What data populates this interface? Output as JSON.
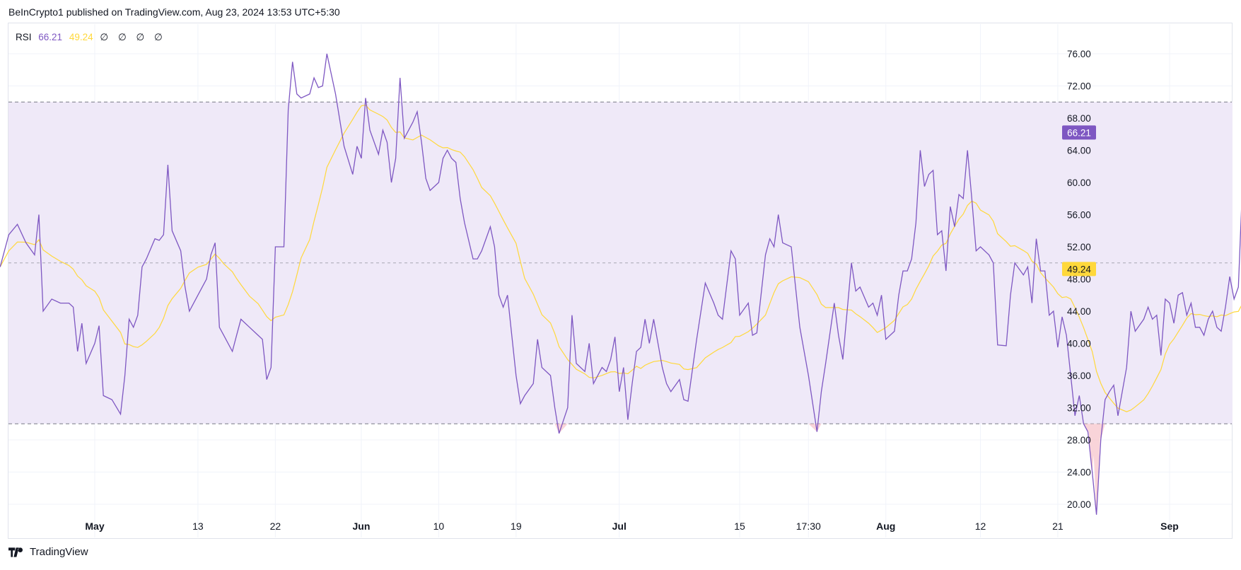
{
  "header": {
    "published": "BeInCrypto1 published on TradingView.com, Aug 23, 2024 13:53 UTC+5:30"
  },
  "legend": {
    "name": "RSI",
    "rsi_value": "66.21",
    "ma_value": "49.24",
    "null_markers": [
      "∅",
      "∅",
      "∅",
      "∅"
    ]
  },
  "footer": {
    "brand": "TradingView"
  },
  "colors": {
    "rsi_line": "#7e57c2",
    "ma_line": "#ffd83b",
    "band_fill": "#efe9f8",
    "oversold_fill": "#f7c9cf"
  },
  "chart_data": {
    "type": "line",
    "title": "",
    "y_range": [
      18.5,
      79
    ],
    "y_ticks": [
      "76.00",
      "72.00",
      "68.00",
      "64.00",
      "60.00",
      "56.00",
      "52.00",
      "48.00",
      "44.00",
      "40.00",
      "36.00",
      "32.00",
      "28.00",
      "24.00",
      "20.00"
    ],
    "y_tick_values": [
      76,
      72,
      68,
      64,
      60,
      56,
      52,
      48,
      44,
      40,
      36,
      32,
      28,
      24,
      20
    ],
    "levels": {
      "upper": 70,
      "middle": 50,
      "lower": 30
    },
    "x_range": [
      "2024-04-20",
      "2024-09-07"
    ],
    "x_ticks": [
      {
        "label": "May",
        "date": "2024-05-01",
        "bold": true
      },
      {
        "label": "13",
        "date": "2024-05-13",
        "bold": false
      },
      {
        "label": "22",
        "date": "2024-05-22",
        "bold": false
      },
      {
        "label": "Jun",
        "date": "2024-06-01",
        "bold": true
      },
      {
        "label": "10",
        "date": "2024-06-10",
        "bold": false
      },
      {
        "label": "19",
        "date": "2024-06-19",
        "bold": false
      },
      {
        "label": "Jul",
        "date": "2024-07-01",
        "bold": true
      },
      {
        "label": "15",
        "date": "2024-07-15",
        "bold": false
      },
      {
        "label": "17:30",
        "date": "2024-07-23",
        "bold": false
      },
      {
        "label": "Aug",
        "date": "2024-08-01",
        "bold": true
      },
      {
        "label": "12",
        "date": "2024-08-12",
        "bold": false
      },
      {
        "label": "21",
        "date": "2024-08-21",
        "bold": false
      },
      {
        "label": "Sep",
        "date": "2024-09-03",
        "bold": true
      }
    ],
    "last_labels": {
      "rsi": "66.21",
      "ma": "49.24"
    },
    "series": [
      {
        "name": "RSI",
        "points": [
          [
            "2024-04-20",
            49.5
          ],
          [
            "2024-04-21",
            53.5
          ],
          [
            "2024-04-22",
            54.8
          ],
          [
            "2024-04-23",
            52.5
          ],
          [
            "2024-04-24",
            51
          ],
          [
            "2024-04-24",
            56
          ],
          [
            "2024-04-25",
            44
          ],
          [
            "2024-04-26",
            45.5
          ],
          [
            "2024-04-27",
            45
          ],
          [
            "2024-04-28",
            45
          ],
          [
            "2024-04-28",
            44.5
          ],
          [
            "2024-04-29",
            39
          ],
          [
            "2024-04-29",
            42.5
          ],
          [
            "2024-04-30",
            37.5
          ],
          [
            "2024-05-01",
            40
          ],
          [
            "2024-05-01",
            42.2
          ],
          [
            "2024-05-02",
            33.5
          ],
          [
            "2024-05-03",
            33
          ],
          [
            "2024-05-04",
            31.2
          ],
          [
            "2024-05-04",
            36
          ],
          [
            "2024-05-05",
            43
          ],
          [
            "2024-05-05",
            42
          ],
          [
            "2024-05-06",
            43.5
          ],
          [
            "2024-05-06",
            49.5
          ],
          [
            "2024-05-07",
            50.5
          ],
          [
            "2024-05-08",
            53
          ],
          [
            "2024-05-08",
            52.8
          ],
          [
            "2024-05-09",
            53.5
          ],
          [
            "2024-05-09",
            62.2
          ],
          [
            "2024-05-10",
            54
          ],
          [
            "2024-05-11",
            51.5
          ],
          [
            "2024-05-11",
            47
          ],
          [
            "2024-05-12",
            44
          ],
          [
            "2024-05-13",
            46
          ],
          [
            "2024-05-14",
            48
          ],
          [
            "2024-05-14",
            51
          ],
          [
            "2024-05-15",
            52.5
          ],
          [
            "2024-05-15",
            42
          ],
          [
            "2024-05-16",
            41
          ],
          [
            "2024-05-17",
            39
          ],
          [
            "2024-05-17",
            41
          ],
          [
            "2024-05-18",
            43
          ],
          [
            "2024-05-19",
            42
          ],
          [
            "2024-05-20",
            41
          ],
          [
            "2024-05-20",
            40.5
          ],
          [
            "2024-05-21",
            35.5
          ],
          [
            "2024-05-21",
            37
          ],
          [
            "2024-05-22",
            52
          ],
          [
            "2024-05-23",
            52
          ],
          [
            "2024-05-23",
            69
          ],
          [
            "2024-05-24",
            75
          ],
          [
            "2024-05-24",
            71
          ],
          [
            "2024-05-25",
            70.5
          ],
          [
            "2024-05-26",
            71
          ],
          [
            "2024-05-26",
            73
          ],
          [
            "2024-05-27",
            71.8
          ],
          [
            "2024-05-27",
            72
          ],
          [
            "2024-05-28",
            76
          ],
          [
            "2024-05-29",
            71
          ],
          [
            "2024-05-30",
            64.5
          ],
          [
            "2024-05-31",
            61
          ],
          [
            "2024-05-31",
            64.5
          ],
          [
            "2024-06-01",
            63
          ],
          [
            "2024-06-01",
            70.5
          ],
          [
            "2024-06-02",
            66.5
          ],
          [
            "2024-06-03",
            63.5
          ],
          [
            "2024-06-03",
            66.5
          ],
          [
            "2024-06-04",
            65
          ],
          [
            "2024-06-04",
            60
          ],
          [
            "2024-06-05",
            63
          ],
          [
            "2024-06-05",
            73
          ],
          [
            "2024-06-06",
            65.5
          ],
          [
            "2024-06-07",
            67.5
          ],
          [
            "2024-06-07",
            68.8
          ],
          [
            "2024-06-08",
            65
          ],
          [
            "2024-06-08",
            60.5
          ],
          [
            "2024-06-09",
            59
          ],
          [
            "2024-06-10",
            60
          ],
          [
            "2024-06-10",
            63
          ],
          [
            "2024-06-11",
            64
          ],
          [
            "2024-06-11",
            63
          ],
          [
            "2024-06-12",
            62.5
          ],
          [
            "2024-06-12",
            58
          ],
          [
            "2024-06-13",
            55
          ],
          [
            "2024-06-14",
            50.5
          ],
          [
            "2024-06-14",
            50.5
          ],
          [
            "2024-06-15",
            51.5
          ],
          [
            "2024-06-16",
            54.5
          ],
          [
            "2024-06-16",
            52
          ],
          [
            "2024-06-17",
            46
          ],
          [
            "2024-06-17",
            44.5
          ],
          [
            "2024-06-18",
            46
          ],
          [
            "2024-06-19",
            36
          ],
          [
            "2024-06-19",
            32.5
          ],
          [
            "2024-06-20",
            33.5
          ],
          [
            "2024-06-21",
            35
          ],
          [
            "2024-06-21",
            40.5
          ],
          [
            "2024-06-22",
            37
          ],
          [
            "2024-06-23",
            36
          ],
          [
            "2024-06-23",
            32
          ],
          [
            "2024-06-24",
            28.8
          ],
          [
            "2024-06-25",
            32
          ],
          [
            "2024-06-25",
            43.5
          ],
          [
            "2024-06-26",
            37.5
          ],
          [
            "2024-06-27",
            36.5
          ],
          [
            "2024-06-27",
            40
          ],
          [
            "2024-06-28",
            35
          ],
          [
            "2024-06-29",
            37
          ],
          [
            "2024-06-29",
            36.5
          ],
          [
            "2024-06-30",
            38
          ],
          [
            "2024-06-30",
            40.8
          ],
          [
            "2024-07-01",
            34
          ],
          [
            "2024-07-01",
            37
          ],
          [
            "2024-07-02",
            30.5
          ],
          [
            "2024-07-02",
            35
          ],
          [
            "2024-07-03",
            39
          ],
          [
            "2024-07-03",
            39.5
          ],
          [
            "2024-07-04",
            43
          ],
          [
            "2024-07-04",
            40
          ],
          [
            "2024-07-05",
            43
          ],
          [
            "2024-07-06",
            37
          ],
          [
            "2024-07-06",
            35
          ],
          [
            "2024-07-07",
            34
          ],
          [
            "2024-07-08",
            35.5
          ],
          [
            "2024-07-08",
            33
          ],
          [
            "2024-07-09",
            32.8
          ],
          [
            "2024-07-10",
            40.5
          ],
          [
            "2024-07-11",
            47.5
          ],
          [
            "2024-07-12",
            45
          ],
          [
            "2024-07-12",
            43.5
          ],
          [
            "2024-07-13",
            43
          ],
          [
            "2024-07-14",
            51.5
          ],
          [
            "2024-07-14",
            50.5
          ],
          [
            "2024-07-15",
            43.5
          ],
          [
            "2024-07-16",
            45
          ],
          [
            "2024-07-16",
            41
          ],
          [
            "2024-07-17",
            41.3
          ],
          [
            "2024-07-18",
            51
          ],
          [
            "2024-07-18",
            53
          ],
          [
            "2024-07-19",
            52
          ],
          [
            "2024-07-19",
            56
          ],
          [
            "2024-07-20",
            52.5
          ],
          [
            "2024-07-21",
            52
          ],
          [
            "2024-07-22",
            42
          ],
          [
            "2024-07-23",
            36
          ],
          [
            "2024-07-24",
            29
          ],
          [
            "2024-07-24",
            34
          ],
          [
            "2024-07-25",
            37.5
          ],
          [
            "2024-07-26",
            45
          ],
          [
            "2024-07-26",
            41
          ],
          [
            "2024-07-27",
            38
          ],
          [
            "2024-07-28",
            50
          ],
          [
            "2024-07-28",
            46.5
          ],
          [
            "2024-07-29",
            47
          ],
          [
            "2024-07-30",
            44.5
          ],
          [
            "2024-07-30",
            45
          ],
          [
            "2024-07-31",
            43.5
          ],
          [
            "2024-07-31",
            46
          ],
          [
            "2024-08-01",
            40.5
          ],
          [
            "2024-08-02",
            41.5
          ],
          [
            "2024-08-02",
            46
          ],
          [
            "2024-08-03",
            49
          ],
          [
            "2024-08-03",
            49
          ],
          [
            "2024-08-04",
            50.5
          ],
          [
            "2024-08-04",
            55
          ],
          [
            "2024-08-05",
            64
          ],
          [
            "2024-08-05",
            59.5
          ],
          [
            "2024-08-06",
            61
          ],
          [
            "2024-08-06",
            61.5
          ],
          [
            "2024-08-07",
            53.5
          ],
          [
            "2024-08-07",
            54
          ],
          [
            "2024-08-08",
            49
          ],
          [
            "2024-08-08",
            57
          ],
          [
            "2024-08-09",
            54.5
          ],
          [
            "2024-08-09",
            58.5
          ],
          [
            "2024-08-10",
            58
          ],
          [
            "2024-08-10",
            64
          ],
          [
            "2024-08-11",
            58
          ],
          [
            "2024-08-11",
            51.5
          ],
          [
            "2024-08-12",
            52
          ],
          [
            "2024-08-13",
            51
          ],
          [
            "2024-08-13",
            50
          ],
          [
            "2024-08-14",
            39.8
          ],
          [
            "2024-08-15",
            39.7
          ],
          [
            "2024-08-15",
            46
          ],
          [
            "2024-08-16",
            50
          ],
          [
            "2024-08-17",
            48.5
          ],
          [
            "2024-08-17",
            49.5
          ],
          [
            "2024-08-18",
            45
          ],
          [
            "2024-08-18",
            53
          ],
          [
            "2024-08-19",
            49
          ],
          [
            "2024-08-19",
            49
          ],
          [
            "2024-08-20",
            43.5
          ],
          [
            "2024-08-20",
            44
          ],
          [
            "2024-08-21",
            39.5
          ],
          [
            "2024-08-21",
            43.3
          ],
          [
            "2024-08-22",
            41
          ],
          [
            "2024-08-22",
            36
          ],
          [
            "2024-08-23",
            31
          ],
          [
            "2024-08-23",
            33.5
          ],
          [
            "2024-08-24",
            30
          ],
          [
            "2024-08-24",
            29
          ],
          [
            "2024-08-25",
            24
          ],
          [
            "2024-08-25",
            18.7
          ],
          [
            "2024-08-26",
            28
          ],
          [
            "2024-08-26",
            33
          ],
          [
            "2024-08-27",
            34
          ],
          [
            "2024-08-27",
            34.8
          ],
          [
            "2024-08-28",
            31
          ],
          [
            "2024-08-29",
            37
          ],
          [
            "2024-08-29",
            44
          ],
          [
            "2024-08-30",
            41.5
          ],
          [
            "2024-08-31",
            43
          ],
          [
            "2024-08-31",
            44.5
          ],
          [
            "2024-09-01",
            43
          ],
          [
            "2024-09-01",
            43.5
          ],
          [
            "2024-09-02",
            38.5
          ],
          [
            "2024-09-02",
            45.5
          ],
          [
            "2024-09-03",
            45
          ],
          [
            "2024-09-03",
            42.5
          ],
          [
            "2024-09-04",
            46
          ],
          [
            "2024-09-04",
            46.3
          ],
          [
            "2024-09-05",
            43.5
          ],
          [
            "2024-09-05",
            45
          ],
          [
            "2024-09-06",
            42
          ],
          [
            "2024-09-06",
            42
          ],
          [
            "2024-09-07",
            41
          ],
          [
            "2024-09-07",
            43
          ],
          [
            "2024-09-08",
            44
          ],
          [
            "2024-09-08",
            42
          ],
          [
            "2024-09-09",
            41.5
          ],
          [
            "2024-09-09",
            44.5
          ],
          [
            "2024-09-10",
            48.3
          ],
          [
            "2024-09-10",
            45.5
          ],
          [
            "2024-09-11",
            47
          ],
          [
            "2024-09-11",
            60.5
          ],
          [
            "2024-09-12",
            62
          ],
          [
            "2024-09-12",
            63.5
          ],
          [
            "2024-09-13",
            66.21
          ]
        ]
      },
      {
        "name": "RSI-based MA",
        "points": []
      }
    ]
  }
}
